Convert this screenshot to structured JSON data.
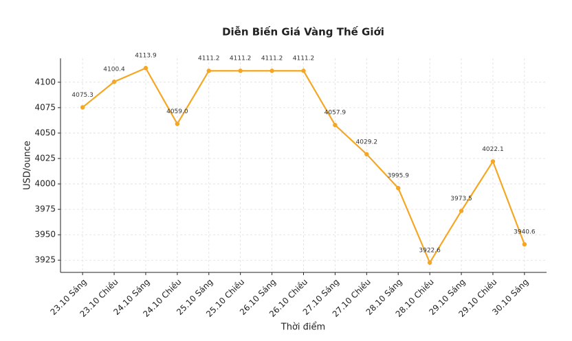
{
  "chart_data": {
    "type": "line",
    "title": "Diễn Biến Giá Vàng Thế Giới",
    "x_label": "Thời điểm",
    "y_label": "USD/ounce",
    "categories": [
      "23.10 Sáng",
      "23.10 Chiều",
      "24.10 Sáng",
      "24.10 Chiều",
      "25.10 Sáng",
      "25.10 Chiều",
      "26.10 Sáng",
      "26.10 Chiều",
      "27.10 Sáng",
      "27.10 Chiều",
      "28.10 Sáng",
      "28.10 Chiều",
      "29.10 Sáng",
      "29.10 Chiều",
      "30.10 Sáng"
    ],
    "values": [
      4075.3,
      4100.4,
      4113.9,
      4059.0,
      4111.2,
      4111.2,
      4111.2,
      4111.2,
      4057.9,
      4029.2,
      3995.9,
      3922.6,
      3973.5,
      4022.1,
      3940.6
    ],
    "value_labels": [
      "4075.3",
      "4100.4",
      "4113.9",
      "4059.0",
      "4111.2",
      "4111.2",
      "4111.2",
      "4111.2",
      "4057.9",
      "4029.2",
      "3995.9",
      "3922.6",
      "3973.5",
      "4022.1",
      "3940.6"
    ],
    "color": "#f5a623",
    "ylim": [
      3913.0,
      4123.5
    ],
    "yticks": [
      3925,
      3950,
      3975,
      4000,
      4025,
      4050,
      4075,
      4100
    ],
    "grid": true
  }
}
